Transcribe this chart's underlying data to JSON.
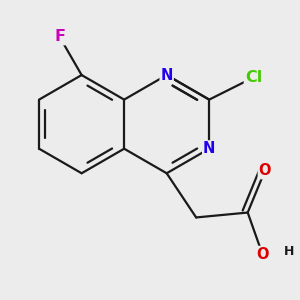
{
  "background_color": "#ececec",
  "bond_color": "#1a1a1a",
  "bond_lw": 1.6,
  "atom_colors": {
    "N": "#2200ee",
    "O": "#dd0000",
    "F": "#cc00bb",
    "Cl": "#44cc00",
    "H": "#1a1a1a"
  },
  "font_size": 10.5,
  "bl": 0.38,
  "figsize": [
    3.0,
    3.0
  ],
  "dpi": 100
}
